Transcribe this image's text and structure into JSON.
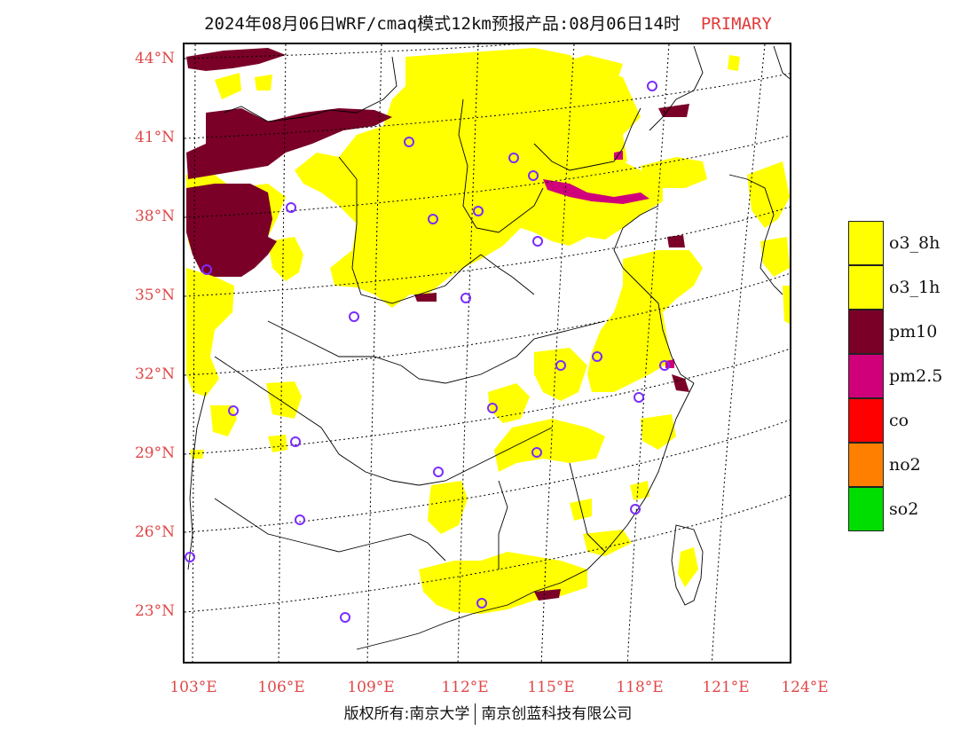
{
  "title": {
    "main": "2024年08月06日WRF/cmaq模式12km预报产品:08月06日14时",
    "tag": "PRIMARY"
  },
  "map": {
    "lat_labels": [
      "44°N",
      "41°N",
      "38°N",
      "35°N",
      "32°N",
      "29°N",
      "26°N",
      "23°N"
    ],
    "lon_labels": [
      "103°E",
      "106°E",
      "109°E",
      "112°E",
      "115°E",
      "118°E",
      "121°E",
      "124°E"
    ]
  },
  "legend": {
    "items": [
      {
        "label": "o3_8h",
        "color": "#ffff00"
      },
      {
        "label": "o3_1h",
        "color": "#ffff00"
      },
      {
        "label": "pm10",
        "color": "#7a0028"
      },
      {
        "label": "pm2.5",
        "color": "#d0007a"
      },
      {
        "label": "co",
        "color": "#ff0000"
      },
      {
        "label": "no2",
        "color": "#ff7f00"
      },
      {
        "label": "so2",
        "color": "#00dd00"
      }
    ]
  },
  "copyright": {
    "left": "版权所有:南京大学",
    "right": "南京创蓝科技有限公司"
  },
  "colors": {
    "o3": "#ffff00",
    "pm10": "#7a0028",
    "pm25": "#d0007a",
    "station_marker": "#7b2cff",
    "grid": "#000000",
    "label": "#e04848"
  }
}
